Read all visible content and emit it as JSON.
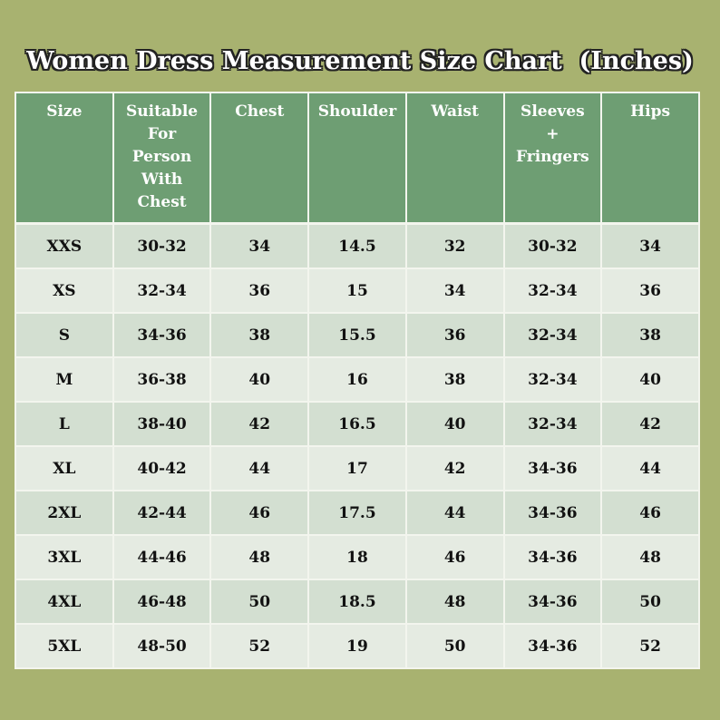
{
  "title": "Women Dress Measurement Size Chart  (Inches)",
  "table": {
    "headers": [
      "Size",
      "Suitable For Person With Chest",
      "Chest",
      "Shoulder",
      "Waist",
      "Sleeves + Fringers",
      "Hips"
    ],
    "rows": [
      [
        "XXS",
        "30-32",
        "34",
        "14.5",
        "32",
        "30-32",
        "34"
      ],
      [
        "XS",
        "32-34",
        "36",
        "15",
        "34",
        "32-34",
        "36"
      ],
      [
        "S",
        "34-36",
        "38",
        "15.5",
        "36",
        "32-34",
        "38"
      ],
      [
        "M",
        "36-38",
        "40",
        "16",
        "38",
        "32-34",
        "40"
      ],
      [
        "L",
        "38-40",
        "42",
        "16.5",
        "40",
        "32-34",
        "42"
      ],
      [
        "XL",
        "40-42",
        "44",
        "17",
        "42",
        "34-36",
        "44"
      ],
      [
        "2XL",
        "42-44",
        "46",
        "17.5",
        "44",
        "34-36",
        "46"
      ],
      [
        "3XL",
        "44-46",
        "48",
        "18",
        "46",
        "34-36",
        "48"
      ],
      [
        "4XL",
        "46-48",
        "50",
        "18.5",
        "48",
        "34-36",
        "50"
      ],
      [
        "5XL",
        "48-50",
        "52",
        "19",
        "50",
        "34-36",
        "52"
      ]
    ]
  }
}
